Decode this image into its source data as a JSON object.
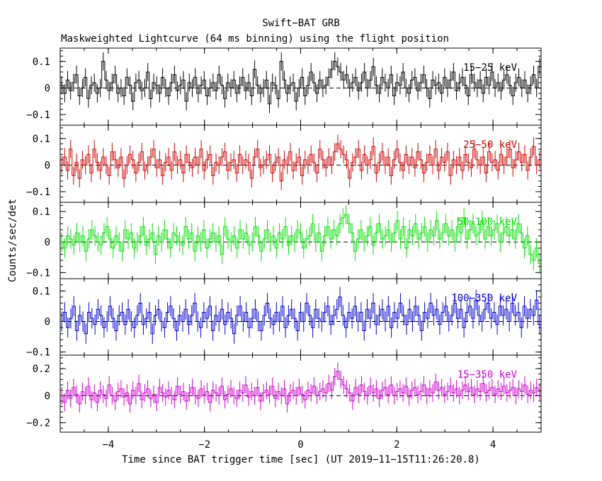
{
  "chart_data": {
    "type": "line",
    "title": "Swift−BAT GRB",
    "subtitle": "Maskweighted Lightcurve (64 ms binning) using the flight position",
    "xlabel": "Time since BAT trigger time [sec] (UT 2019−11−15T11:26:20.8)",
    "ylabel": "Counts/sec/det",
    "xlim": [
      -5,
      5
    ],
    "x_ticks": [
      -4,
      -2,
      0,
      2,
      4
    ],
    "x_tick_labels": [
      "−4",
      "−2",
      "0",
      "2",
      "4"
    ],
    "bin_width": 0.064,
    "panels": [
      {
        "name": "15−25 keV",
        "color": "#000000",
        "ylim": [
          -0.14,
          0.15
        ],
        "y_ticks": [
          0.1,
          0,
          -0.1
        ],
        "y_tick_labels": [
          "0.1",
          "0",
          "−0.1"
        ],
        "error": 0.034,
        "values": [
          0.01,
          -0.02,
          0.03,
          -0.01,
          0.02,
          0.05,
          -0.03,
          0.0,
          0.04,
          -0.04,
          0.01,
          0.02,
          -0.02,
          0.0,
          0.1,
          0.03,
          -0.01,
          0.02,
          0.05,
          -0.02,
          0.0,
          -0.03,
          0.04,
          0.01,
          -0.05,
          0.02,
          0.03,
          -0.01,
          0.0,
          0.06,
          -0.04,
          0.02,
          0.01,
          -0.02,
          0.04,
          0.0,
          -0.03,
          0.02,
          0.05,
          -0.01,
          0.01,
          0.03,
          -0.05,
          0.02,
          0.0,
          0.04,
          -0.02,
          0.01,
          0.03,
          -0.03,
          0.0,
          0.02,
          -0.01,
          0.05,
          0.01,
          -0.04,
          0.02,
          0.0,
          0.03,
          -0.02,
          0.01,
          0.04,
          -0.01,
          0.02,
          -0.03,
          0.07,
          0.01,
          -0.02,
          0.0,
          0.03,
          -0.06,
          0.02,
          0.01,
          -0.04,
          0.1,
          0.03,
          -0.02,
          0.01,
          0.02,
          -0.05,
          0.0,
          0.04,
          -0.03,
          0.01,
          0.06,
          0.02,
          -0.02,
          0.03,
          0.0,
          0.01,
          0.04,
          0.07,
          0.1,
          0.08,
          0.06,
          0.03,
          0.05,
          0.0,
          0.02,
          0.04,
          -0.01,
          0.02,
          0.06,
          0.0,
          0.03,
          0.08,
          0.01,
          -0.02,
          0.04,
          0.02,
          0.0,
          0.05,
          -0.03,
          0.02,
          0.01,
          0.06,
          0.0,
          -0.02,
          0.03,
          0.04,
          -0.01,
          0.02,
          0.05,
          0.0,
          -0.04,
          0.03,
          0.01,
          0.02,
          -0.02,
          0.04,
          0.0,
          0.03,
          0.06,
          -0.01,
          0.02,
          0.04,
          0.01,
          -0.03,
          0.05,
          0.02,
          0.0,
          0.03,
          -0.02,
          0.04,
          0.01,
          0.06,
          0.0,
          0.02,
          -0.01,
          0.03,
          0.05,
          0.01,
          -0.03,
          0.02,
          0.04,
          0.0,
          0.03,
          -0.02,
          0.01,
          0.05,
          0.0,
          0.08
        ]
      },
      {
        "name": "25−50 keV",
        "color": "#cc0000",
        "ylim": [
          -0.14,
          0.15
        ],
        "y_ticks": [
          0.1,
          0,
          -0.1
        ],
        "y_tick_labels": [
          "0.1",
          "0",
          "−0.1"
        ],
        "error": 0.034,
        "values": [
          0.0,
          0.03,
          -0.02,
          0.06,
          -0.04,
          0.01,
          -0.05,
          0.02,
          0.0,
          0.04,
          -0.03,
          0.06,
          0.01,
          -0.02,
          0.03,
          0.0,
          -0.04,
          0.05,
          0.02,
          -0.01,
          0.03,
          -0.05,
          0.0,
          0.04,
          0.02,
          -0.03,
          0.01,
          0.05,
          -0.02,
          0.0,
          0.03,
          0.06,
          -0.01,
          0.02,
          -0.04,
          0.01,
          0.03,
          -0.02,
          0.05,
          0.0,
          0.02,
          -0.03,
          0.04,
          0.01,
          -0.01,
          0.03,
          0.0,
          0.06,
          -0.02,
          0.02,
          0.04,
          -0.04,
          0.01,
          0.0,
          0.03,
          0.05,
          -0.02,
          0.01,
          0.02,
          -0.03,
          0.04,
          0.0,
          0.02,
          0.01,
          -0.05,
          0.03,
          0.06,
          -0.01,
          0.0,
          0.02,
          0.04,
          -0.03,
          0.01,
          0.03,
          -0.06,
          0.02,
          0.0,
          0.05,
          -0.02,
          0.01,
          0.03,
          -0.04,
          0.02,
          0.0,
          0.04,
          0.01,
          -0.03,
          0.06,
          0.02,
          -0.01,
          0.03,
          0.0,
          0.05,
          0.08,
          0.06,
          0.04,
          0.02,
          -0.05,
          0.01,
          0.03,
          0.06,
          -0.02,
          0.04,
          0.0,
          0.02,
          0.07,
          -0.03,
          0.01,
          0.05,
          0.0,
          0.03,
          -0.04,
          0.02,
          0.06,
          0.01,
          -0.02,
          0.04,
          0.0,
          0.03,
          -0.01,
          0.05,
          0.02,
          -0.03,
          0.01,
          0.04,
          0.0,
          0.06,
          -0.02,
          0.03,
          0.01,
          0.05,
          -0.04,
          0.02,
          0.0,
          0.03,
          -0.02,
          0.04,
          0.01,
          -0.01,
          0.06,
          0.02,
          0.0,
          0.03,
          -0.03,
          0.05,
          0.01,
          0.02,
          -0.02,
          0.04,
          0.0,
          0.03,
          0.06,
          -0.01,
          0.02,
          0.05,
          0.01,
          0.04,
          -0.02,
          0.03,
          0.07,
          0.0,
          0.02
        ]
      },
      {
        "name": "50−100 keV",
        "color": "#00dd00",
        "ylim": [
          -0.12,
          0.13
        ],
        "y_ticks": [
          0.1,
          0,
          -0.1
        ],
        "y_tick_labels": [
          "0.1",
          "0",
          "−0.1"
        ],
        "error": 0.032,
        "values": [
          0.0,
          -0.02,
          0.02,
          0.01,
          -0.01,
          0.03,
          0.0,
          0.02,
          -0.03,
          0.01,
          0.04,
          0.02,
          0.0,
          -0.01,
          0.03,
          0.05,
          0.01,
          -0.02,
          0.02,
          0.0,
          -0.03,
          0.04,
          0.01,
          0.03,
          -0.02,
          0.0,
          0.02,
          0.05,
          -0.01,
          0.01,
          0.03,
          -0.04,
          0.02,
          0.0,
          0.04,
          0.01,
          -0.02,
          0.03,
          0.02,
          0.0,
          -0.01,
          0.05,
          0.01,
          0.03,
          -0.03,
          0.02,
          0.0,
          0.04,
          -0.02,
          0.01,
          0.03,
          0.0,
          0.02,
          -0.04,
          0.05,
          0.01,
          0.0,
          0.02,
          -0.02,
          0.04,
          0.01,
          0.03,
          -0.01,
          0.0,
          0.05,
          0.02,
          -0.03,
          0.01,
          0.04,
          0.0,
          0.02,
          -0.02,
          0.03,
          0.01,
          0.05,
          -0.01,
          0.02,
          0.0,
          0.04,
          0.03,
          -0.02,
          0.01,
          0.02,
          0.06,
          0.0,
          0.03,
          -0.03,
          0.02,
          0.05,
          0.01,
          0.04,
          0.02,
          0.06,
          0.08,
          0.09,
          0.06,
          0.03,
          -0.03,
          0.01,
          0.04,
          0.0,
          0.02,
          0.05,
          -0.01,
          0.03,
          0.06,
          0.01,
          0.02,
          0.04,
          0.0,
          0.03,
          0.07,
          0.01,
          0.05,
          -0.02,
          0.04,
          0.02,
          0.06,
          0.01,
          0.03,
          0.05,
          0.0,
          0.04,
          0.02,
          0.07,
          0.01,
          0.03,
          0.06,
          0.02,
          0.04,
          0.0,
          0.05,
          0.03,
          0.08,
          0.01,
          0.04,
          0.06,
          0.02,
          0.03,
          0.07,
          0.01,
          0.05,
          0.02,
          0.04,
          0.06,
          0.0,
          0.03,
          0.05,
          0.02,
          0.04,
          0.01,
          0.06,
          0.03,
          -0.02,
          0.02,
          -0.04,
          -0.06,
          -0.02,
          -0.07
        ]
      },
      {
        "name": "100−350 keV",
        "color": "#0000cc",
        "ylim": [
          -0.11,
          0.14
        ],
        "y_ticks": [
          0.1,
          0,
          -0.1
        ],
        "y_tick_labels": [
          "0.1",
          "0",
          "−0.1"
        ],
        "error": 0.033,
        "values": [
          0.0,
          0.03,
          -0.02,
          0.01,
          0.05,
          -0.03,
          0.02,
          0.0,
          -0.04,
          0.03,
          0.01,
          -0.01,
          0.04,
          0.02,
          -0.02,
          0.0,
          0.05,
          0.01,
          -0.03,
          0.02,
          0.03,
          -0.01,
          0.04,
          0.0,
          -0.02,
          0.02,
          0.06,
          -0.01,
          0.01,
          0.03,
          -0.04,
          0.02,
          0.04,
          0.0,
          -0.02,
          0.03,
          0.05,
          0.01,
          -0.03,
          0.02,
          0.0,
          0.04,
          -0.01,
          0.02,
          0.06,
          0.0,
          -0.02,
          0.03,
          0.01,
          0.05,
          -0.03,
          0.02,
          0.0,
          0.04,
          -0.01,
          0.03,
          0.01,
          -0.04,
          0.02,
          0.05,
          0.0,
          0.03,
          -0.02,
          0.01,
          0.04,
          0.0,
          -0.03,
          0.02,
          0.06,
          0.01,
          -0.01,
          0.03,
          0.0,
          0.05,
          -0.02,
          0.02,
          0.04,
          0.01,
          -0.03,
          0.03,
          0.0,
          0.06,
          0.02,
          -0.02,
          0.04,
          0.01,
          0.0,
          0.03,
          0.05,
          -0.01,
          0.02,
          0.04,
          0.08,
          0.02,
          -0.02,
          0.03,
          0.01,
          0.05,
          0.0,
          0.03,
          -0.03,
          0.04,
          0.01,
          0.06,
          -0.01,
          0.02,
          0.04,
          0.0,
          0.05,
          -0.02,
          0.03,
          0.01,
          0.06,
          0.02,
          -0.01,
          0.04,
          0.0,
          0.05,
          0.02,
          -0.03,
          0.03,
          0.01,
          0.06,
          0.02,
          0.04,
          -0.01,
          0.03,
          0.05,
          0.0,
          0.02,
          0.06,
          0.01,
          0.04,
          -0.02,
          0.03,
          0.05,
          0.01,
          0.07,
          0.02,
          0.0,
          0.04,
          0.06,
          0.01,
          0.03,
          -0.01,
          0.05,
          0.02,
          0.04,
          0.0,
          0.06,
          0.02,
          0.03,
          -0.02,
          0.05,
          0.01,
          0.04,
          0.02,
          0.07,
          -0.01
        ]
      },
      {
        "name": "15−350 keV",
        "color": "#cc00cc",
        "ylim": [
          -0.27,
          0.3
        ],
        "y_ticks": [
          0.2,
          0,
          -0.2
        ],
        "y_tick_labels": [
          "0.2",
          "0",
          "−0.2"
        ],
        "error": 0.065,
        "values": [
          0.0,
          -0.05,
          0.04,
          -0.02,
          0.06,
          0.01,
          -0.06,
          0.03,
          0.0,
          0.07,
          -0.03,
          0.02,
          -0.05,
          0.04,
          0.01,
          -0.02,
          0.08,
          0.0,
          -0.04,
          0.03,
          0.05,
          -0.01,
          0.02,
          -0.06,
          0.04,
          0.0,
          0.09,
          -0.03,
          0.02,
          0.05,
          -0.02,
          0.01,
          -0.05,
          0.06,
          0.02,
          -0.01,
          0.04,
          0.0,
          -0.03,
          0.07,
          0.01,
          0.03,
          -0.04,
          0.02,
          0.06,
          0.0,
          -0.02,
          0.05,
          0.01,
          0.03,
          -0.05,
          0.04,
          0.02,
          0.0,
          0.07,
          -0.03,
          0.01,
          0.05,
          0.0,
          -0.02,
          0.04,
          0.02,
          0.08,
          -0.01,
          0.03,
          0.0,
          0.06,
          -0.04,
          0.02,
          0.04,
          0.01,
          0.07,
          -0.02,
          0.03,
          0.0,
          0.05,
          -0.06,
          0.02,
          0.04,
          0.0,
          0.06,
          0.01,
          -0.03,
          0.04,
          0.02,
          0.07,
          0.0,
          0.03,
          0.05,
          0.02,
          0.09,
          0.04,
          0.14,
          0.18,
          0.12,
          0.08,
          0.05,
          0.02,
          -0.04,
          0.06,
          0.01,
          0.08,
          0.03,
          0.0,
          0.07,
          0.02,
          0.05,
          -0.02,
          0.04,
          0.06,
          0.01,
          0.08,
          0.0,
          0.03,
          0.05,
          0.02,
          0.07,
          -0.01,
          0.04,
          0.06,
          0.01,
          0.03,
          0.08,
          0.0,
          0.05,
          0.02,
          0.1,
          0.04,
          0.06,
          0.01,
          0.03,
          0.07,
          0.02,
          0.05,
          0.0,
          0.04,
          0.08,
          0.03,
          0.06,
          0.01,
          0.05,
          0.03,
          0.09,
          0.02,
          0.04,
          0.06,
          0.01,
          0.05,
          0.03,
          0.07,
          0.02,
          0.04,
          0.06,
          0.0,
          0.05,
          0.03,
          0.08,
          0.01,
          0.04,
          0.02,
          0.06,
          0.03
        ]
      }
    ]
  }
}
